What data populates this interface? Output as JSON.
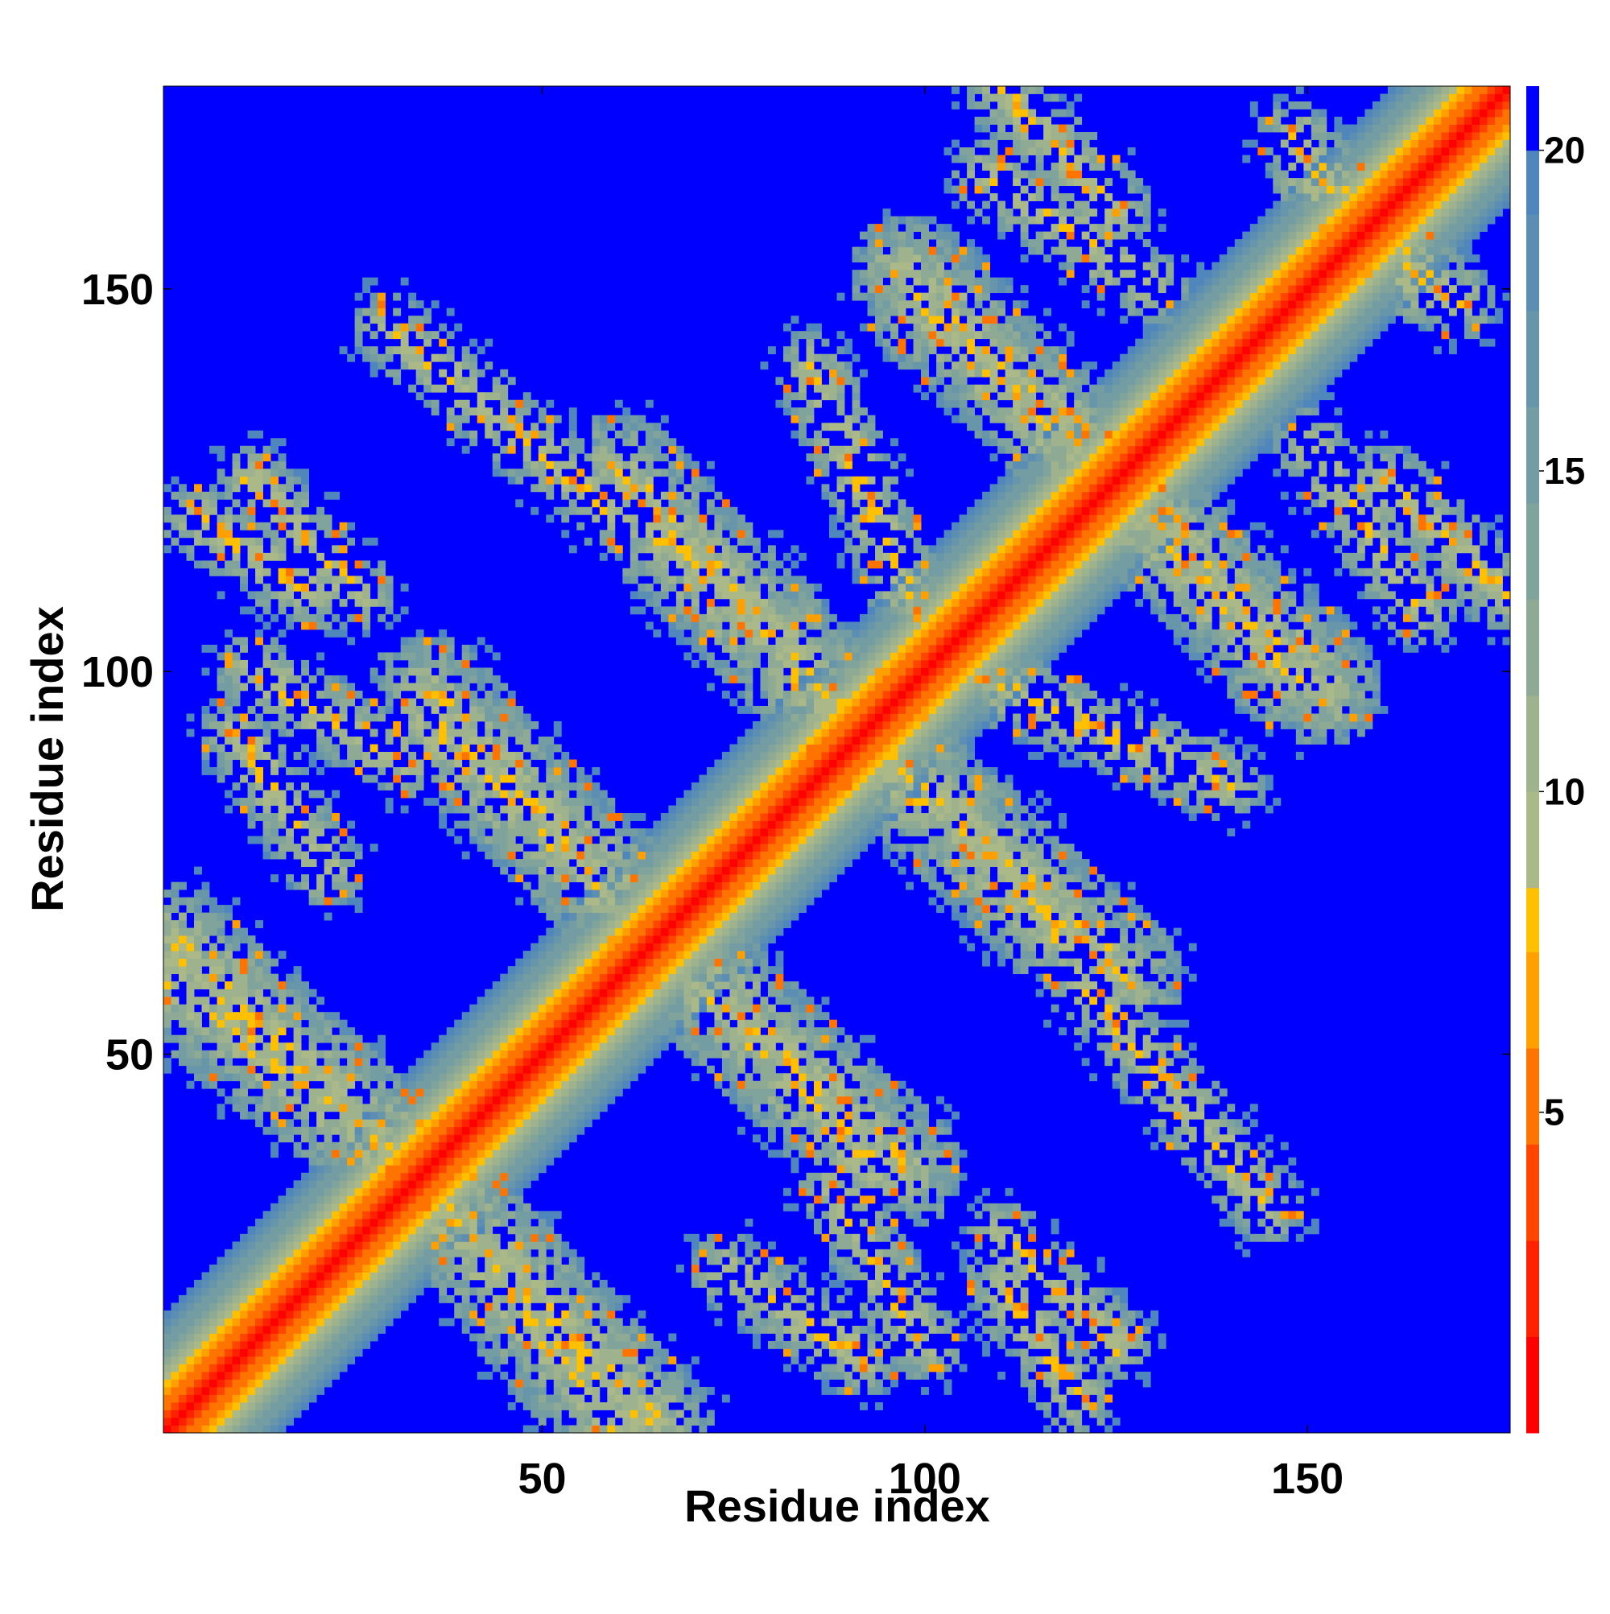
{
  "chart_data": {
    "type": "heatmap",
    "title": "",
    "xlabel": "Residue index",
    "ylabel": "Residue index",
    "n_residues": 176,
    "xlim": [
      0.5,
      176.5
    ],
    "ylim": [
      0.5,
      176.5
    ],
    "x_ticks": [
      50,
      100,
      150
    ],
    "y_ticks": [
      50,
      100,
      150
    ],
    "x_tick_labels": [
      "50",
      "100",
      "150"
    ],
    "y_tick_labels": [
      "50",
      "100",
      "150"
    ],
    "value_description": "distance map, symmetric about diagonal",
    "colorbar": {
      "range": [
        0,
        21
      ],
      "ticks": [
        5,
        10,
        15,
        20
      ],
      "tick_labels": [
        "5",
        "10",
        "15",
        "20"
      ],
      "palette": [
        {
          "upper": 1.5,
          "color": "#ff0000"
        },
        {
          "upper": 3.0,
          "color": "#ff2000"
        },
        {
          "upper": 4.5,
          "color": "#ff4500"
        },
        {
          "upper": 6.0,
          "color": "#ff7400"
        },
        {
          "upper": 7.5,
          "color": "#ffa000"
        },
        {
          "upper": 8.5,
          "color": "#ffc000"
        },
        {
          "upper": 10.0,
          "color": "#aab987"
        },
        {
          "upper": 11.5,
          "color": "#9eb28e"
        },
        {
          "upper": 13.0,
          "color": "#8eaa95"
        },
        {
          "upper": 14.5,
          "color": "#80a39c"
        },
        {
          "upper": 16.0,
          "color": "#739ca3"
        },
        {
          "upper": 17.5,
          "color": "#6795aa"
        },
        {
          "upper": 19.0,
          "color": "#5b8eb2"
        },
        {
          "upper": 20.0,
          "color": "#4f86bb"
        },
        {
          "upper": 21.0,
          "color": "#0000ff"
        }
      ]
    },
    "structure": {
      "diagonal_band": "values near 0-5 on and adjacent to diagonal, rising to ~10 within ~6 residues",
      "contact_bands": [
        {
          "description": "antiparallel band",
          "points": [
            [
              1,
              65
            ],
            [
              33,
              35
            ]
          ]
        },
        {
          "description": "antiparallel band",
          "points": [
            [
              34,
              34
            ],
            [
              60,
              1
            ]
          ]
        },
        {
          "description": "antiparallel band",
          "points": [
            [
              36,
              93
            ],
            [
              97,
              35
            ]
          ]
        },
        {
          "description": "antiparallel band",
          "points": [
            [
              60,
              126
            ],
            [
              92,
              92
            ]
          ]
        },
        {
          "description": "antiparallel band",
          "points": [
            [
              92,
              92
            ],
            [
              120,
              64
            ]
          ]
        },
        {
          "description": "antiparallel band",
          "points": [
            [
              100,
              148
            ],
            [
              152,
              98
            ]
          ]
        },
        {
          "description": "contact patch",
          "points": [
            [
              74,
              22
            ],
            [
              92,
              10
            ]
          ]
        },
        {
          "description": "contact patch",
          "points": [
            [
              110,
              26
            ],
            [
              125,
              12
            ]
          ]
        },
        {
          "description": "contact patch",
          "points": [
            [
              12,
              100
            ],
            [
              32,
              88
            ]
          ]
        },
        {
          "description": "contact patch",
          "points": [
            [
              30,
              145
            ],
            [
              60,
              120
            ]
          ]
        },
        {
          "description": "contact patch",
          "points": [
            [
              110,
              98
            ],
            [
              140,
              85
            ]
          ]
        },
        {
          "description": "contact patch",
          "points": [
            [
              108,
              165
            ],
            [
              130,
              150
            ]
          ]
        },
        {
          "description": "contact patch",
          "points": [
            [
              150,
              165
            ],
            [
              170,
              148
            ]
          ]
        },
        {
          "description": "contact patch",
          "points": [
            [
              5,
              120
            ],
            [
              20,
              110
            ]
          ]
        },
        {
          "description": "contact patch",
          "points": [
            [
              160,
              125
            ],
            [
              176,
              110
            ]
          ]
        }
      ]
    }
  }
}
